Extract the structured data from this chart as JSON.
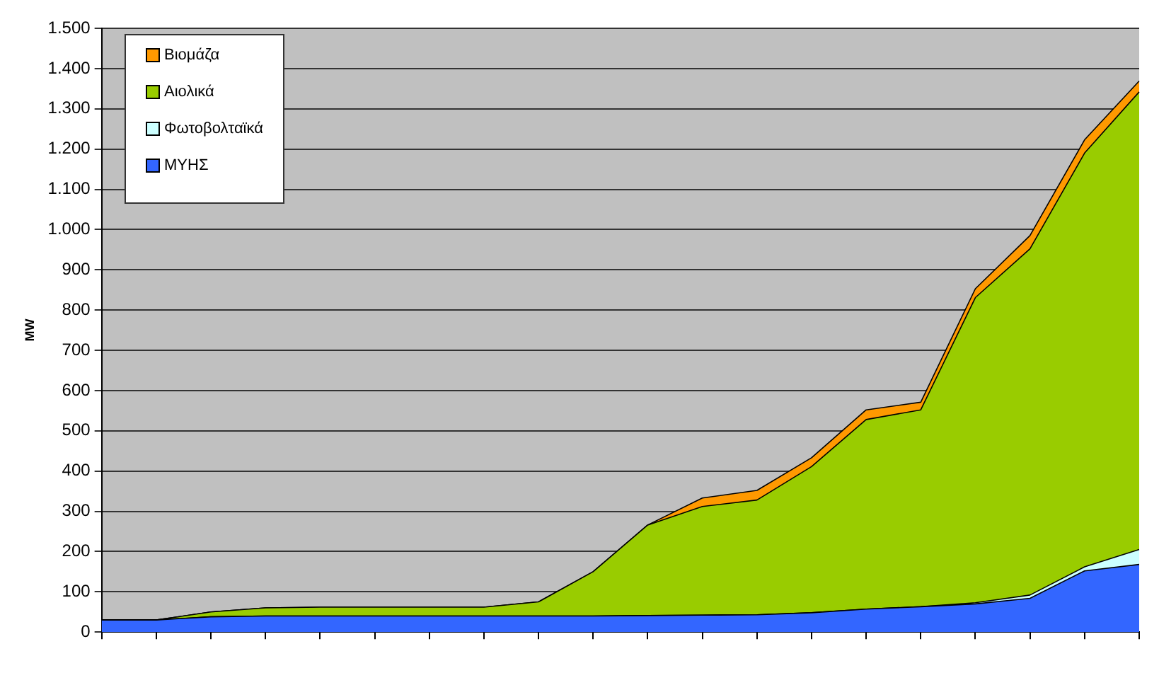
{
  "chart_data": {
    "type": "area",
    "stacked": true,
    "ylabel": "MW",
    "categories": [
      null,
      null,
      null,
      null,
      null,
      null,
      null,
      null,
      null,
      null,
      null,
      null,
      null,
      null,
      null,
      null,
      null,
      null,
      null,
      null
    ],
    "series": [
      {
        "name": "ΜΥΗΣ",
        "color": "#3366ff",
        "values": [
          30,
          30,
          38,
          40,
          40,
          40,
          40,
          40,
          40,
          40,
          41,
          42,
          43,
          48,
          57,
          63,
          70,
          84,
          152,
          168
        ]
      },
      {
        "name": "Φωτοβολταϊκά",
        "color": "#ccffff",
        "values": [
          0,
          0,
          0,
          0,
          0,
          0,
          0,
          0,
          0,
          0,
          0,
          0,
          0,
          0,
          0,
          0,
          3,
          8,
          10,
          37
        ]
      },
      {
        "name": "Αιολικά",
        "color": "#99cc00",
        "values": [
          0,
          0,
          12,
          20,
          22,
          22,
          22,
          22,
          35,
          110,
          225,
          270,
          285,
          363,
          471,
          489,
          758,
          860,
          1028,
          1137
        ]
      },
      {
        "name": "Βιομάζα",
        "color": "#ff9900",
        "values": [
          0,
          0,
          0,
          0,
          0,
          0,
          0,
          0,
          0,
          0,
          0,
          21,
          24,
          22,
          24,
          19,
          22,
          33,
          33,
          27
        ]
      }
    ],
    "ylim": [
      0,
      1500
    ],
    "yticks": [
      0,
      100,
      200,
      300,
      400,
      500,
      600,
      700,
      800,
      900,
      {
        "value": 1000,
        "label": "1.000"
      },
      {
        "value": 1100,
        "label": "1.100"
      },
      {
        "value": 1200,
        "label": "1.200"
      },
      {
        "value": 1300,
        "label": "1.300"
      },
      {
        "value": 1400,
        "label": "1.400"
      },
      {
        "value": 1500,
        "label": "1.500"
      }
    ],
    "grid": "y",
    "legend": "top left"
  }
}
